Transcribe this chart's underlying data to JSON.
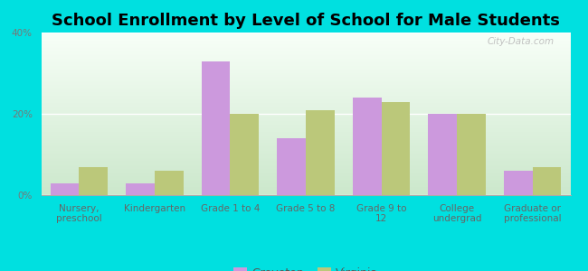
{
  "title": "School Enrollment by Level of School for Male Students",
  "categories": [
    "Nursery,\npreschool",
    "Kindergarten",
    "Grade 1 to 4",
    "Grade 5 to 8",
    "Grade 9 to\n12",
    "College\nundergrad",
    "Graduate or\nprofessional"
  ],
  "groveton": [
    3,
    3,
    33,
    14,
    24,
    20,
    6
  ],
  "virginia": [
    7,
    6,
    20,
    21,
    23,
    20,
    7
  ],
  "groveton_color": "#cc99dd",
  "virginia_color": "#bbc87a",
  "bg_color": "#00e0e0",
  "title_fontsize": 13,
  "tick_fontsize": 7.5,
  "legend_fontsize": 9,
  "ylim": [
    0,
    40
  ],
  "yticks": [
    0,
    20,
    40
  ],
  "ytick_labels": [
    "0%",
    "20%",
    "40%"
  ],
  "bar_width": 0.38,
  "watermark": "City-Data.com"
}
